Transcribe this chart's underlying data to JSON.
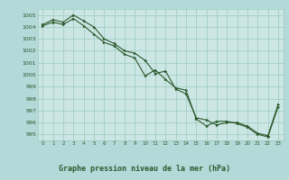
{
  "title": "Graphe pression niveau de la mer (hPa)",
  "bg_color": "#b3d9d9",
  "plot_bg_color": "#cce5e5",
  "grid_color": "#99ccbb",
  "line_color": "#2d5a2d",
  "marker_color": "#2d5a2d",
  "series1": {
    "x": [
      0,
      1,
      2,
      3,
      4,
      5,
      6,
      7,
      8,
      9,
      10,
      11,
      12,
      13,
      14,
      15,
      16,
      17,
      18,
      19,
      20,
      21,
      22,
      23
    ],
    "y": [
      1004.2,
      1004.6,
      1004.4,
      1005.0,
      1004.5,
      1004.0,
      1003.0,
      1002.6,
      1002.0,
      1001.8,
      1001.2,
      1000.1,
      1000.3,
      998.8,
      998.4,
      996.4,
      996.2,
      995.8,
      996.0,
      996.0,
      995.7,
      995.1,
      994.9,
      997.5
    ]
  },
  "series2": {
    "x": [
      0,
      1,
      2,
      3,
      4,
      5,
      6,
      7,
      8,
      9,
      10,
      11,
      12,
      13,
      14,
      15,
      16,
      17,
      18,
      19,
      20,
      21,
      22,
      23
    ],
    "y": [
      1004.1,
      1004.4,
      1004.2,
      1004.7,
      1004.1,
      1003.4,
      1002.7,
      1002.4,
      1001.7,
      1001.4,
      999.9,
      1000.4,
      999.6,
      998.9,
      998.7,
      996.3,
      995.7,
      996.1,
      996.1,
      995.9,
      995.6,
      995.0,
      994.8,
      997.3
    ]
  },
  "ylim": [
    994.5,
    1005.5
  ],
  "xlim": [
    -0.5,
    23.5
  ],
  "yticks": [
    995,
    996,
    997,
    998,
    999,
    1000,
    1001,
    1002,
    1003,
    1004,
    1005
  ],
  "xticks": [
    0,
    1,
    2,
    3,
    4,
    5,
    6,
    7,
    8,
    9,
    10,
    11,
    12,
    13,
    14,
    15,
    16,
    17,
    18,
    19,
    20,
    21,
    22,
    23
  ]
}
